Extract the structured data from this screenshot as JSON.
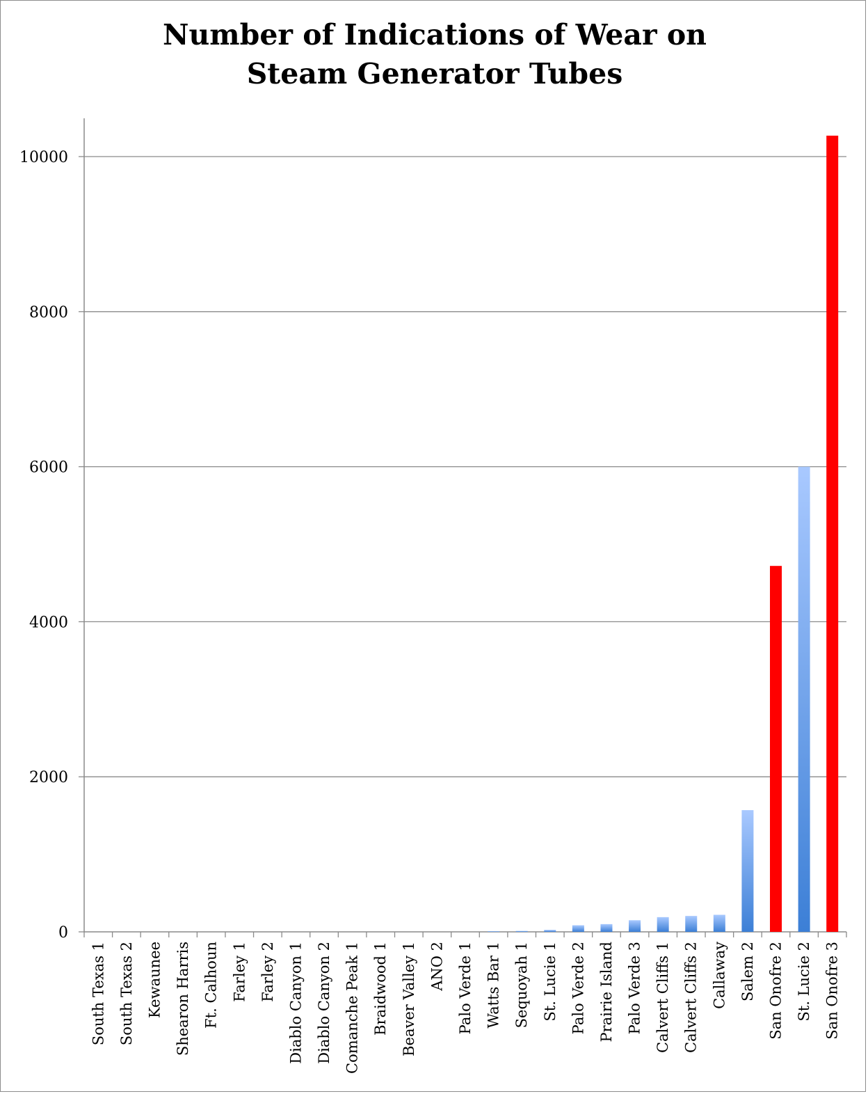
{
  "chart_data": {
    "type": "bar",
    "title_line1": "Number of Indications of Wear on",
    "title_line2": "Steam Generator Tubes",
    "xlabel": "",
    "ylabel": "",
    "ylim": [
      0,
      10500
    ],
    "yticks": [
      0,
      2000,
      4000,
      6000,
      8000,
      10000
    ],
    "grid": true,
    "legend": "none",
    "categories": [
      "South Texas 1",
      "South Texas 2",
      "Kewaunee",
      "Shearon Harris",
      "Ft. Calhoun",
      "Farley 1",
      "Farley 2",
      "Diablo Canyon 1",
      "Diablo Canyon 2",
      "Comanche Peak 1",
      "Braidwood 1",
      "Beaver Valley 1",
      "ANO 2",
      "Palo Verde 1",
      "Watts Bar 1",
      "Sequoyah 1",
      "St. Lucie 1",
      "Palo Verde 2",
      "Prairie Island",
      "Palo Verde 3",
      "Calvert Cliffs 1",
      "Calvert Cliffs 2",
      "Callaway",
      "Salem 2",
      "San Onofre 2",
      "St. Lucie 2",
      "San Onofre 3"
    ],
    "values": [
      0,
      0,
      0,
      0,
      0,
      0,
      0,
      0,
      0,
      0,
      0,
      0,
      0,
      0,
      8,
      12,
      25,
      85,
      100,
      150,
      190,
      205,
      220,
      1570,
      4720,
      6000,
      10270
    ],
    "highlight": [
      "San Onofre 2",
      "San Onofre 3"
    ],
    "colors": {
      "bar_top": "#a9c9ff",
      "bar_bottom": "#3c7fd6",
      "highlight": "#ff0000",
      "grid": "#8a8a8a",
      "axis": "#8a8a8a"
    }
  }
}
